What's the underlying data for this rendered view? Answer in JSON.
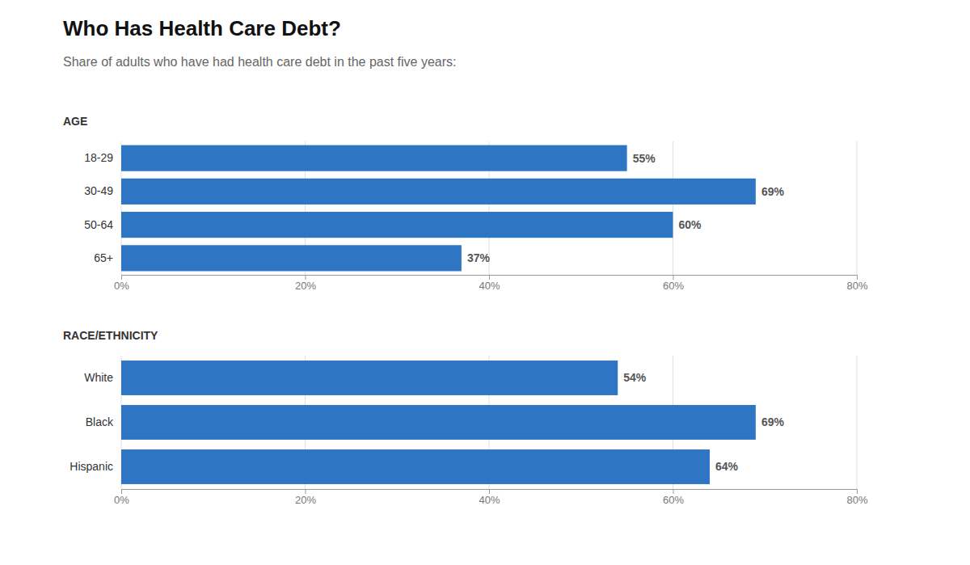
{
  "title": "Who Has Health Care Debt?",
  "subtitle": "Share of adults who have had health care debt in the past five years:",
  "chart_data": [
    {
      "type": "bar",
      "orientation": "horizontal",
      "title": "AGE",
      "categories": [
        "18-29",
        "30-49",
        "50-64",
        "65+"
      ],
      "values": [
        55,
        69,
        60,
        37
      ],
      "value_labels": [
        "55%",
        "69%",
        "60%",
        "37%"
      ],
      "data_labels": true,
      "color": "#2e75c3",
      "xlim": [
        0,
        80
      ],
      "xticks": [
        {
          "value": 0,
          "label": "0%"
        },
        {
          "value": 20,
          "label": "20%"
        },
        {
          "value": 40,
          "label": "40%"
        },
        {
          "value": 60,
          "label": "60%"
        },
        {
          "value": 80,
          "label": "80%"
        }
      ],
      "grid": true
    },
    {
      "type": "bar",
      "orientation": "horizontal",
      "title": "RACE/ETHNICITY",
      "categories": [
        "White",
        "Black",
        "Hispanic"
      ],
      "values": [
        54,
        69,
        64
      ],
      "value_labels": [
        "54%",
        "69%",
        "64%"
      ],
      "data_labels": true,
      "color": "#2e75c3",
      "xlim": [
        0,
        80
      ],
      "xticks": [
        {
          "value": 0,
          "label": "0%"
        },
        {
          "value": 20,
          "label": "20%"
        },
        {
          "value": 40,
          "label": "40%"
        },
        {
          "value": 60,
          "label": "60%"
        },
        {
          "value": 80,
          "label": "80%"
        }
      ],
      "grid": true
    }
  ]
}
